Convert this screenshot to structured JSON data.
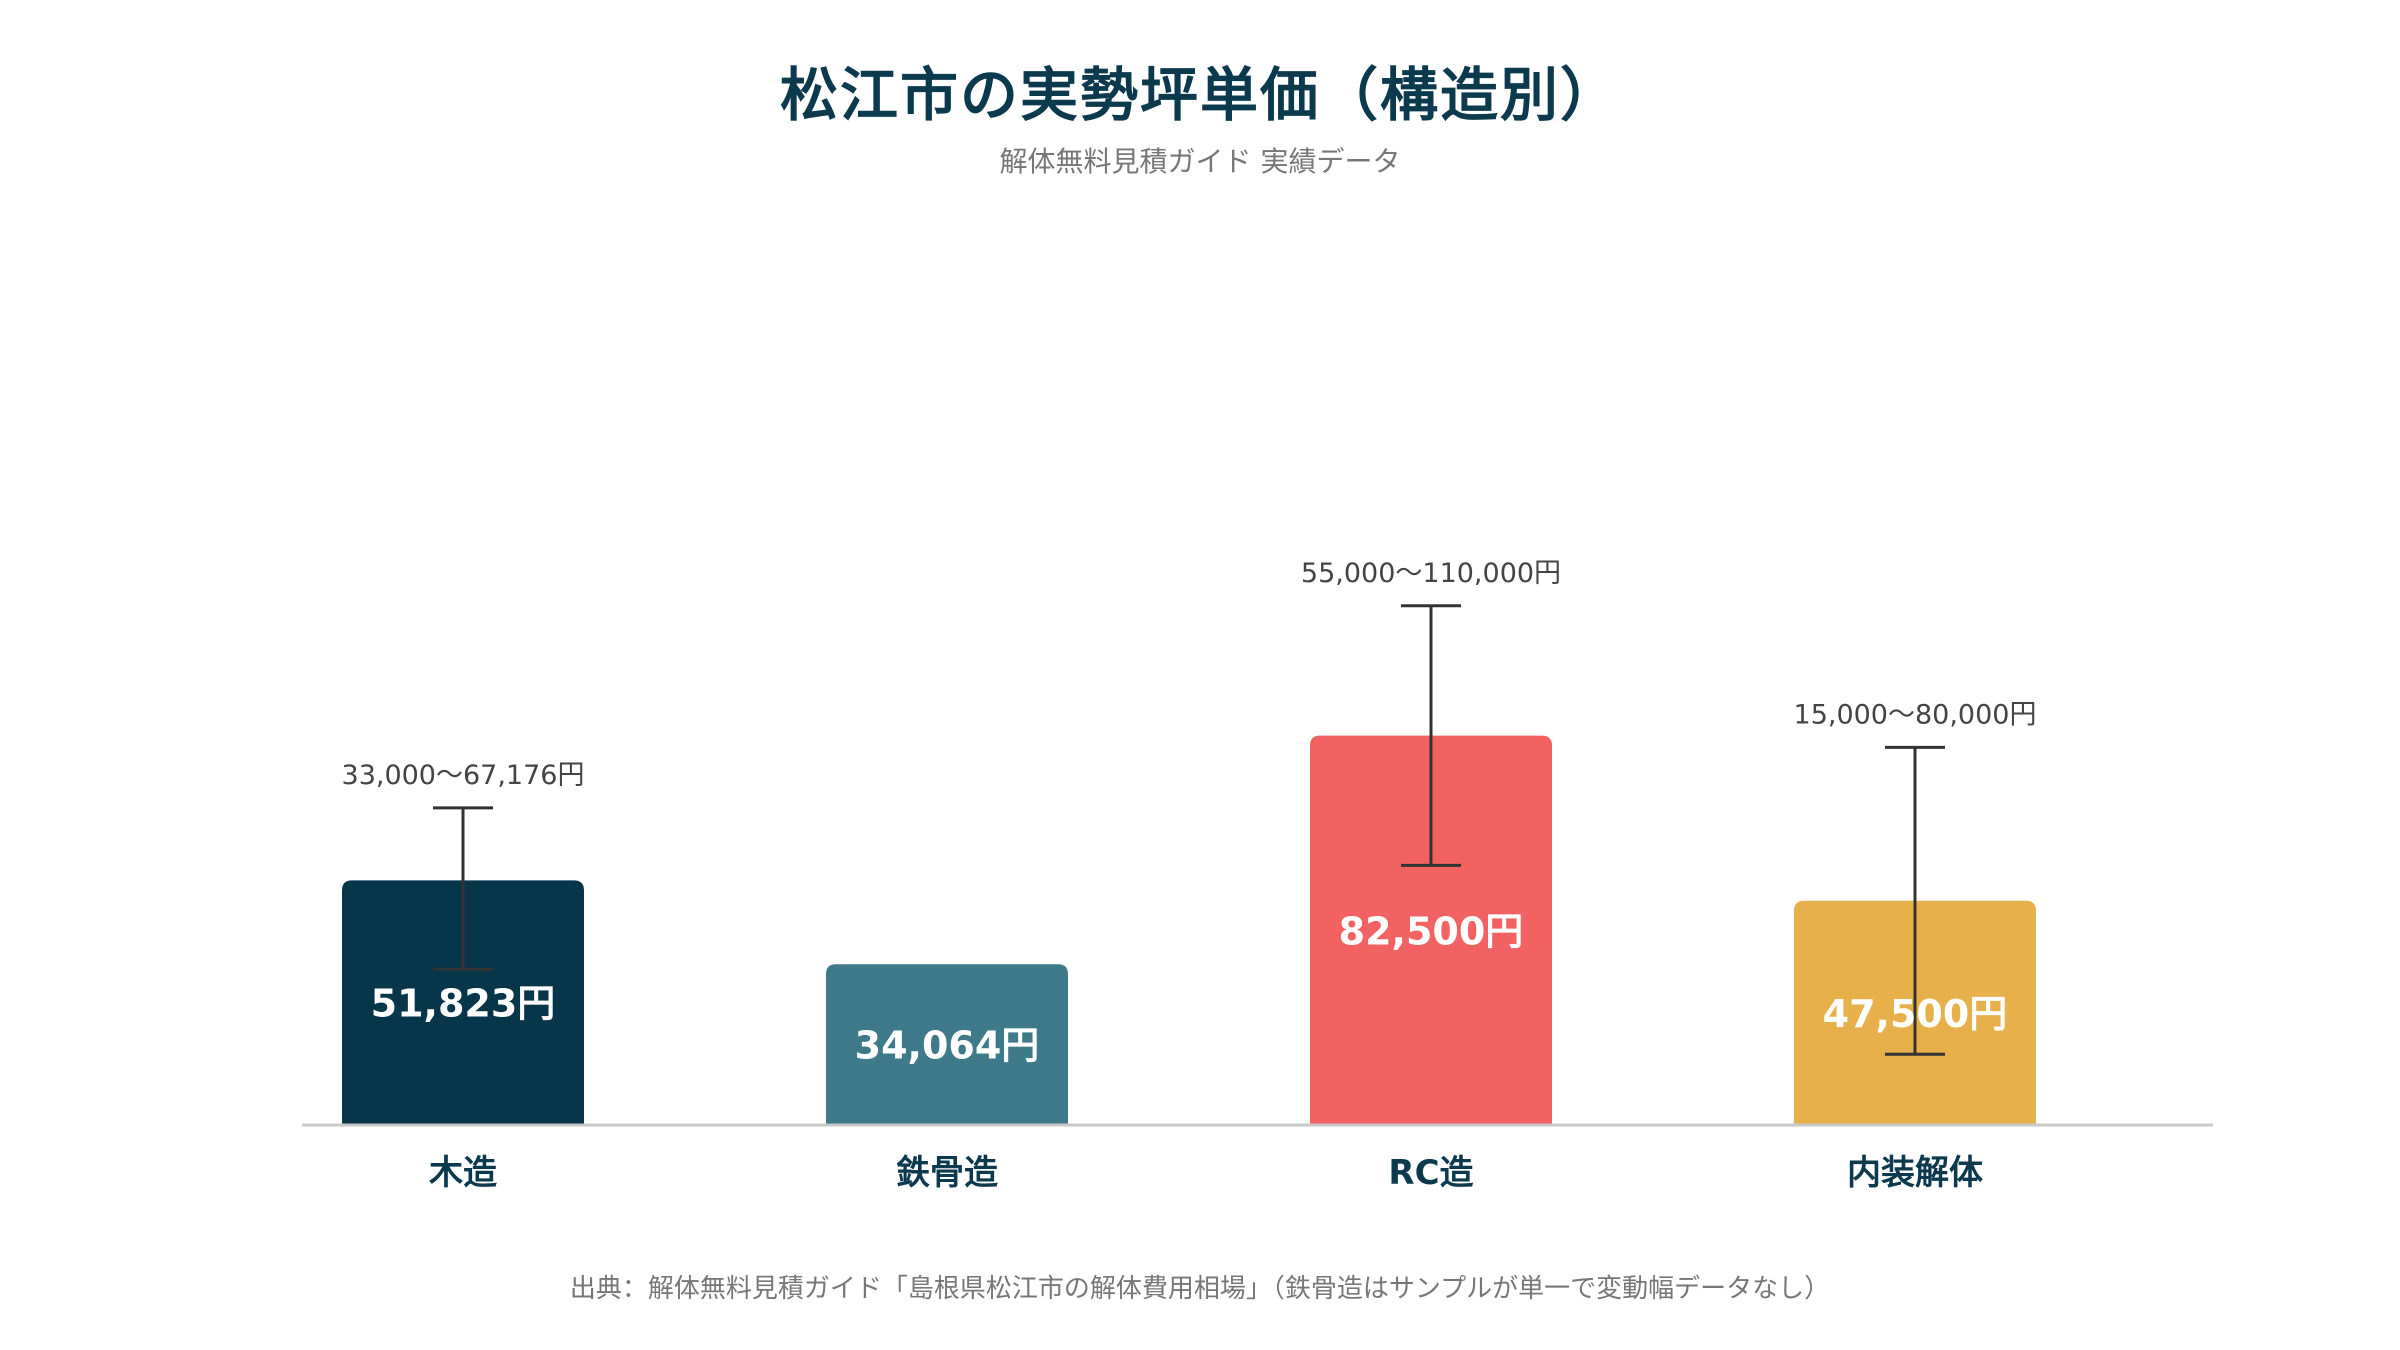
{
  "chart_data": {
    "type": "bar",
    "title": "松江市の実勢坪単価（構造別）",
    "subtitle": "解体無料見積ガイド 実績データ",
    "source": "出典：解体無料見積ガイド「島根県松江市の解体費用相場」（鉄骨造はサンプルが単一で変動幅データなし）",
    "unit": "円",
    "categories": [
      "木造",
      "鉄骨造",
      "RC造",
      "内装解体"
    ],
    "values": [
      51823,
      34064,
      82500,
      47500
    ],
    "value_labels": [
      "51,823円",
      "34,064円",
      "82,500円",
      "47,500円"
    ],
    "ranges": [
      {
        "low": 33000,
        "high": 67176,
        "label": "33,000〜67,176円"
      },
      null,
      {
        "low": 55000,
        "high": 110000,
        "label": "55,000〜110,000円"
      },
      {
        "low": 15000,
        "high": 80000,
        "label": "15,000〜80,000円"
      }
    ],
    "colors": [
      "#07364a",
      "#3e7a89",
      "#f26262",
      "#e8b04a"
    ],
    "ylim": [
      0,
      126000
    ],
    "grid": false,
    "legend": "none"
  }
}
